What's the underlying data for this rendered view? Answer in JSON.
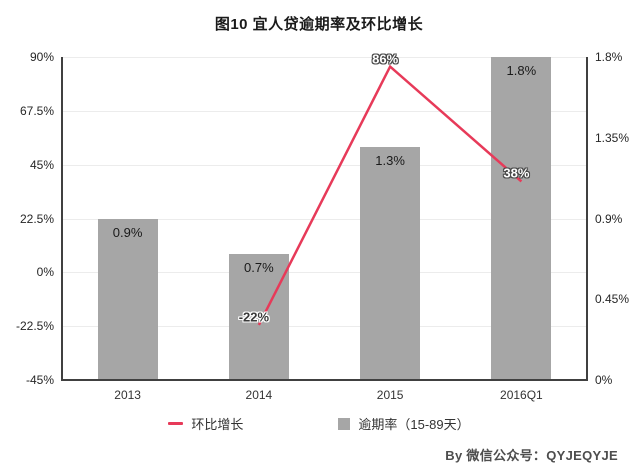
{
  "title": "图10  宜人贷逾期率及环比增长",
  "footer": "By 微信公众号：QYJEQYJE",
  "legend": [
    {
      "label": "环比增长",
      "marker": "line-dash-icon",
      "color": "#e73a59"
    },
    {
      "label": "逾期率（15-89天）",
      "marker": "square-icon",
      "color": "#a6a6a6"
    }
  ],
  "colors": {
    "bar": "#a6a6a6",
    "line": "#e73a59",
    "grid": "#ececec",
    "axis": "#404040",
    "text": "#262626",
    "background": "#ffffff"
  },
  "chart_data": {
    "type": "bar",
    "subtype": "combo-bar-line-dual-axis",
    "title": "图10  宜人贷逾期率及环比增长",
    "categories": [
      "2013",
      "2014",
      "2015",
      "2016Q1"
    ],
    "series": [
      {
        "name": "逾期率（15-89天）",
        "type": "bar",
        "axis": "right",
        "values": [
          0.9,
          0.7,
          1.3,
          1.8
        ],
        "labels": [
          "0.9%",
          "0.7%",
          "1.3%",
          "1.8%"
        ],
        "color": "#a6a6a6"
      },
      {
        "name": "环比增长",
        "type": "line",
        "axis": "left",
        "values": [
          null,
          -22,
          86,
          38
        ],
        "labels": [
          null,
          "-22%",
          "86%",
          "38%"
        ],
        "color": "#e73a59"
      }
    ],
    "left_axis": {
      "min": -45,
      "max": 90,
      "ticks": [
        90,
        67.5,
        45,
        22.5,
        0,
        -22.5,
        -45
      ],
      "tick_labels": [
        "90%",
        "67.5%",
        "45%",
        "22.5%",
        "0%",
        "-22.5%",
        "-45%"
      ]
    },
    "right_axis": {
      "min": 0,
      "max": 1.8,
      "ticks": [
        1.8,
        1.35,
        0.9,
        0.45,
        0
      ],
      "tick_labels": [
        "1.8%",
        "1.35%",
        "0.9%",
        "0.45%",
        "0%"
      ]
    },
    "grid": true,
    "legend_position": "bottom"
  }
}
